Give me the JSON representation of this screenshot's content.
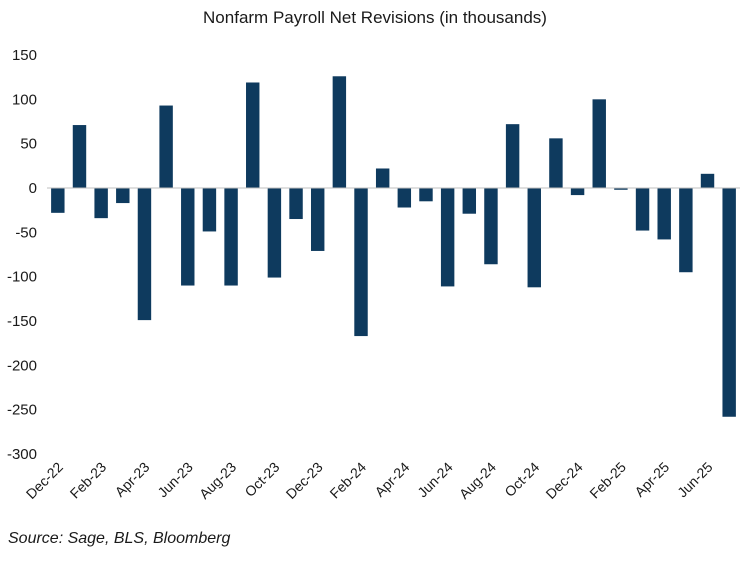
{
  "chart_data": {
    "type": "bar",
    "title": "Nonfarm Payroll Net Revisions (in thousands)",
    "xlabel": "",
    "ylabel": "",
    "ylim": [
      -300,
      150
    ],
    "yticks": [
      150,
      100,
      50,
      0,
      -50,
      -100,
      -150,
      -200,
      -250,
      -300
    ],
    "categories": [
      "Dec-22",
      "Jan-23",
      "Feb-23",
      "Mar-23",
      "Apr-23",
      "May-23",
      "Jun-23",
      "Jul-23",
      "Aug-23",
      "Sep-23",
      "Oct-23",
      "Nov-23",
      "Dec-23",
      "Jan-24",
      "Feb-24",
      "Mar-24",
      "Apr-24",
      "May-24",
      "Jun-24",
      "Jul-24",
      "Aug-24",
      "Sep-24",
      "Oct-24",
      "Nov-24",
      "Dec-24",
      "Jan-25",
      "Feb-25",
      "Mar-25",
      "Apr-25",
      "May-25",
      "Jun-25",
      "Jul-25"
    ],
    "x_tick_labels": [
      "Dec-22",
      "",
      "Feb-23",
      "",
      "Apr-23",
      "",
      "Jun-23",
      "",
      "Aug-23",
      "",
      "Oct-23",
      "",
      "Dec-23",
      "",
      "Feb-24",
      "",
      "Apr-24",
      "",
      "Jun-24",
      "",
      "Aug-24",
      "",
      "Oct-24",
      "",
      "Dec-24",
      "",
      "Feb-25",
      "",
      "Apr-25",
      "",
      "Jun-25",
      ""
    ],
    "series": [
      {
        "values": [
          -28,
          71,
          -34,
          -17,
          -149,
          93,
          -110,
          -49,
          -110,
          119,
          -101,
          -35,
          -71,
          126,
          -167,
          22,
          -22,
          -15,
          -111,
          -29,
          -86,
          72,
          -112,
          56,
          -8,
          100,
          -2,
          -48,
          -58,
          -95,
          16,
          -258
        ]
      }
    ],
    "bar_color": "#0e3a5e",
    "grid": false,
    "legend": "none"
  },
  "source": "Source: Sage, BLS, Bloomberg"
}
